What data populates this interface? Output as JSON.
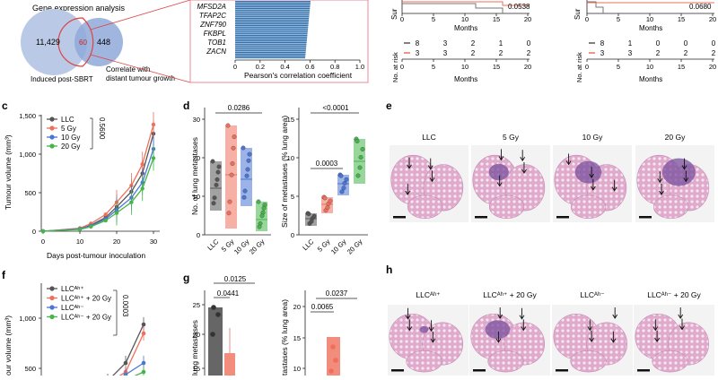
{
  "colors": {
    "llc": "#555555",
    "gy5": "#ef6f5b",
    "gy10": "#4a74d6",
    "gy20": "#45b449",
    "bar_blue": "#2f6fae",
    "venn_left": "#b9c9e6",
    "venn_right": "#8fa9d9",
    "venn_border": "#d44",
    "tissue": "#d9a3c8",
    "tumor": "#7a4f9e"
  },
  "panel_a": {
    "venn_title": "Gene expression analysis",
    "left_count": "11,429",
    "overlap_count": "60",
    "right_count": "448",
    "left_label": "Induced post-SBRT",
    "right_label": "Correlate with distant tumour growth"
  },
  "panel_b": {
    "genes": [
      "MFSD2A",
      "TFAP2C",
      "ZNF790",
      "FKBPL",
      "TOB1",
      "ZACN"
    ],
    "xlabel": "Pearson's correlation coefficient",
    "ticks": [
      "0",
      "0.2",
      "0.4",
      "0.6",
      "0.8",
      "1.0"
    ]
  },
  "km_left": {
    "pvalue": "0.0538",
    "xlabel": "Months",
    "ylabel_partial": "Sur",
    "ticks": [
      "0",
      "5",
      "10",
      "15",
      "20"
    ],
    "risk_label": "No. at risk",
    "risk_rows": [
      [
        "8",
        "3",
        "2",
        "1",
        "0"
      ],
      [
        "3",
        "3",
        "2",
        "2",
        "2"
      ]
    ]
  },
  "km_right": {
    "pvalue": "0.0680",
    "xlabel": "Months",
    "ylabel_partial": "Sur",
    "ticks": [
      "0",
      "5",
      "10",
      "15",
      "20"
    ],
    "risk_label": "No. at risk",
    "risk_rows": [
      [
        "8",
        "1",
        "0",
        "0",
        "0"
      ],
      [
        "3",
        "3",
        "2",
        "2",
        "2"
      ]
    ]
  },
  "panel_c": {
    "label": "c",
    "ylabel": "Tumour volume (mm³)",
    "xlabel": "Days post-tumour inoculation",
    "pvalue": "0.5600",
    "legend": [
      "LLC",
      "5 Gy",
      "10 Gy",
      "20 Gy"
    ],
    "xticks": [
      "0",
      "10",
      "20",
      "30"
    ],
    "yticks": [
      "0",
      "500",
      "1,000",
      "1,500"
    ]
  },
  "panel_d": {
    "label": "d",
    "left_ylabel": "No. of lung metastases",
    "left_pvalue": "0.0286",
    "left_yticks": [
      "0",
      "10",
      "20",
      "30"
    ],
    "right_ylabel": "Size of metastases (% lung area)",
    "right_pvalues": [
      "0.0003",
      "<0.0001"
    ],
    "right_yticks": [
      "0",
      "5",
      "10",
      "15"
    ],
    "groups": [
      "LLC",
      "5 Gy",
      "10 Gy",
      "20 Gy"
    ]
  },
  "panel_e": {
    "label": "e",
    "titles": [
      "LLC",
      "5 Gy",
      "10 Gy",
      "20 Gy"
    ]
  },
  "panel_f": {
    "label": "f",
    "legend": [
      "LLCᴬʰ⁺",
      "LLCᴬʰ⁺ + 20 Gy",
      "LLCᴬʰ⁻",
      "LLCᴬʰ⁻ + 20 Gy"
    ],
    "pvalue": "0.0003",
    "ylabel_partial": "our volume (mm³)",
    "yticks": [
      "500",
      "1,000"
    ]
  },
  "panel_g": {
    "label": "g",
    "pvalues_left": [
      "0.0125",
      "0.0441"
    ],
    "left_ylabel_partial": "lung metastases",
    "left_yticks": [
      "15",
      "20",
      "25"
    ],
    "pvalues_right": [
      "0.0237",
      "0.0065"
    ],
    "right_ylabel_partial": "tastases (% lung area)",
    "right_yticks": [
      "10",
      "15",
      "20"
    ]
  },
  "panel_h": {
    "label": "h",
    "titles": [
      "LLCᴬʰ⁺",
      "LLCᴬʰ⁺ + 20 Gy",
      "LLCᴬʰ⁻",
      "LLCᴬʰ⁻ + 20 Gy"
    ]
  }
}
